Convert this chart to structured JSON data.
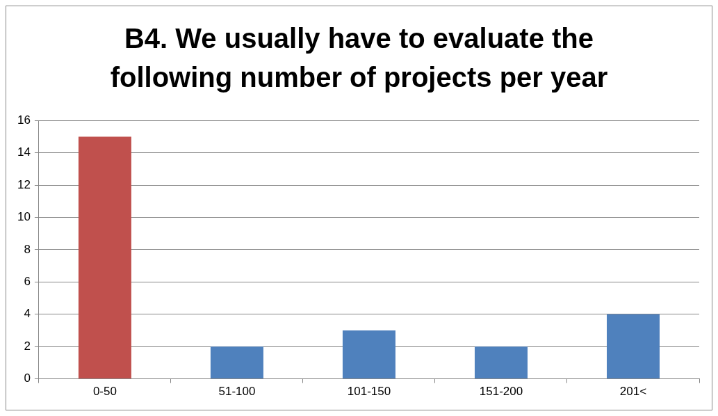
{
  "chart_data": {
    "type": "bar",
    "title": "B4. We usually have to evaluate the following number of projects per year",
    "categories": [
      "0-50",
      "51-100",
      "101-150",
      "151-200",
      "201<"
    ],
    "values": [
      15,
      2,
      3,
      2,
      4
    ],
    "colors": [
      "#c0504d",
      "#4f81bd",
      "#4f81bd",
      "#4f81bd",
      "#4f81bd"
    ],
    "ylim": [
      0,
      16
    ],
    "yticks": [
      0,
      2,
      4,
      6,
      8,
      10,
      12,
      14,
      16
    ],
    "grid": "y"
  }
}
